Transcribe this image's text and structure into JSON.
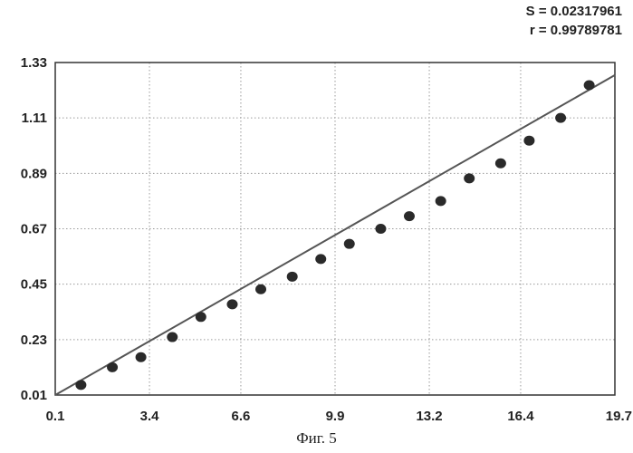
{
  "stats": {
    "s_text": "S = 0.02317961",
    "r_text": "r = 0.99789781"
  },
  "caption": "Фиг. 5",
  "chart_data": {
    "type": "scatter",
    "title": "",
    "xlabel": "",
    "ylabel": "",
    "xlim": [
      0.1,
      19.7
    ],
    "ylim": [
      0.01,
      1.33
    ],
    "x_ticks": [
      "0.1",
      "3.4",
      "6.6",
      "9.9",
      "13.2",
      "16.4",
      "19.7"
    ],
    "y_ticks": [
      "0.01",
      "0.23",
      "0.45",
      "0.67",
      "0.89",
      "1.11",
      "1.33"
    ],
    "grid": true,
    "grid_style": "dotted",
    "colors": {
      "points": "#2a2a2a",
      "fit_line": "#555555",
      "grid": "#9a9a9a",
      "frame": "#333333"
    },
    "series": [
      {
        "type": "scatter",
        "x": [
          1.0,
          2.1,
          3.1,
          4.2,
          5.2,
          6.3,
          7.3,
          8.4,
          9.4,
          10.4,
          11.5,
          12.5,
          13.6,
          14.6,
          15.7,
          16.7,
          17.8,
          18.8
        ],
        "y": [
          0.05,
          0.12,
          0.16,
          0.24,
          0.32,
          0.37,
          0.43,
          0.48,
          0.55,
          0.61,
          0.67,
          0.72,
          0.78,
          0.87,
          0.93,
          1.02,
          1.11,
          1.24
        ]
      },
      {
        "type": "line",
        "x": [
          0.1,
          19.7
        ],
        "y": [
          0.01,
          1.28
        ]
      }
    ]
  }
}
